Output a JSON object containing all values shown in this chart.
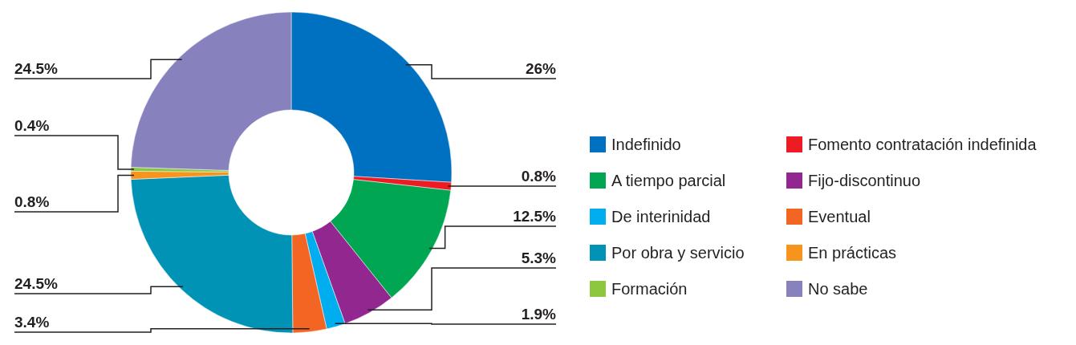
{
  "chart_data": {
    "type": "donut",
    "categories": [
      "Indefinido",
      "Fomento contratación indefinida",
      "A tiempo parcial",
      "Fijo-discontinuo",
      "De interinidad",
      "Eventual",
      "Por obra y servicio",
      "En prácticas",
      "Formación",
      "No sabe"
    ],
    "values": [
      26,
      0.8,
      12.5,
      5.3,
      1.9,
      3.4,
      24.5,
      0.8,
      0.4,
      24.5
    ],
    "value_labels": [
      "26%",
      "0.8%",
      "12.5%",
      "5.3%",
      "1.9%",
      "3.4%",
      "24.5%",
      "0.8%",
      "0.4%",
      "24.5%"
    ],
    "colors": [
      "#0070c0",
      "#ed1c24",
      "#00a651",
      "#92278f",
      "#00aeef",
      "#f26522",
      "#0093b5",
      "#f7941d",
      "#8dc63f",
      "#8781bd"
    ],
    "legend": "right"
  }
}
